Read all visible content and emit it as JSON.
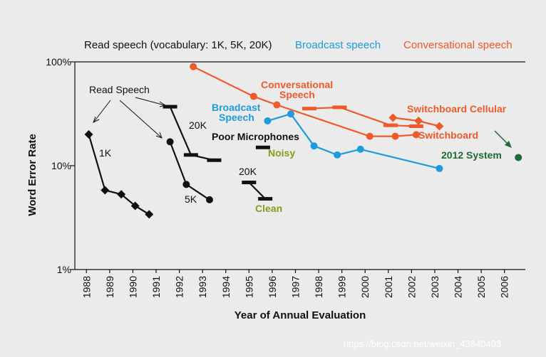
{
  "chart_data": {
    "type": "line",
    "title": "",
    "xlabel": "Year of Annual Evaluation",
    "ylabel": "Word Error Rate",
    "yscale": "log",
    "ylim": [
      1,
      100
    ],
    "xlim": [
      1987.5,
      2006.9
    ],
    "x_ticks": [
      "1988",
      "1989",
      "1990",
      "1991",
      "1992",
      "1993",
      "1994",
      "1995",
      "1996",
      "1997",
      "1998",
      "1999",
      "2000",
      "2001",
      "2002",
      "2003",
      "2004",
      "2005",
      "2006"
    ],
    "y_ticks": [
      {
        "value": 100,
        "label": "100%"
      },
      {
        "value": 10,
        "label": "10%"
      },
      {
        "value": 1,
        "label": "1%"
      }
    ],
    "legend": [
      {
        "label": "Read speech (vocabulary: 1K, 5K, 20K)",
        "color": "#111111"
      },
      {
        "label": "Broadcast speech",
        "color": "#1f9bdc"
      },
      {
        "label": "Conversational speech",
        "color": "#ef5a2b"
      }
    ],
    "series": [
      {
        "name": "Read 1K",
        "color": "#111111",
        "marker": "diamond",
        "points": [
          [
            1988.1,
            20
          ],
          [
            1988.8,
            5.8
          ],
          [
            1989.5,
            5.3
          ],
          [
            1990.1,
            4.1
          ],
          [
            1990.7,
            3.4
          ]
        ]
      },
      {
        "name": "Read 5K",
        "color": "#111111",
        "marker": "circle",
        "points": [
          [
            1991.6,
            17
          ],
          [
            1992.3,
            6.6
          ],
          [
            1993.3,
            4.7
          ]
        ]
      },
      {
        "name": "Read 20K",
        "color": "#111111",
        "marker": "bar",
        "points": [
          [
            1991.6,
            37
          ],
          [
            1992.5,
            12.7
          ],
          [
            1993.5,
            11.3
          ]
        ]
      },
      {
        "name": "Poor Microphones / Noisy",
        "color": "#111111",
        "marker": "bar",
        "points": [
          [
            1995.6,
            15
          ]
        ]
      },
      {
        "name": "20K Clean",
        "color": "#111111",
        "marker": "bar",
        "points": [
          [
            1995.0,
            6.9
          ],
          [
            1995.7,
            4.8
          ]
        ]
      },
      {
        "name": "Broadcast",
        "color": "#1f9bdc",
        "marker": "circle",
        "points": [
          [
            1995.8,
            27
          ],
          [
            1996.8,
            31.5
          ],
          [
            1997.8,
            15.5
          ],
          [
            1998.8,
            12.7
          ],
          [
            1999.8,
            14.4
          ],
          [
            2003.2,
            9.4
          ]
        ]
      },
      {
        "name": "Conversational",
        "color": "#ef5a2b",
        "marker": "circle",
        "points": [
          [
            1992.6,
            90
          ],
          [
            1995.2,
            46.5
          ],
          [
            1996.2,
            38.5
          ],
          [
            2000.2,
            19.2
          ],
          [
            2001.3,
            19.2
          ],
          [
            2002.2,
            19.9
          ]
        ]
      },
      {
        "name": "Switchboard bars",
        "color": "#ef5a2b",
        "marker": "bar",
        "points": [
          [
            1997.6,
            35.5
          ],
          [
            1998.9,
            36.5
          ],
          [
            2001.1,
            24.5
          ],
          [
            2002.2,
            24
          ]
        ]
      },
      {
        "name": "Switchboard Cellular",
        "color": "#ef5a2b",
        "marker": "diamond",
        "points": [
          [
            2001.2,
            29
          ],
          [
            2002.3,
            27
          ],
          [
            2003.2,
            24
          ]
        ]
      },
      {
        "name": "2012 System",
        "color": "#1e6b35",
        "marker": "circle",
        "connect": false,
        "points": [
          [
            2006.6,
            12
          ]
        ]
      }
    ],
    "annotations": [
      {
        "text": "Read Speech",
        "color": "#111111",
        "style": "normal"
      },
      {
        "text": "1K",
        "color": "#111111",
        "style": "normal"
      },
      {
        "text": "5K",
        "color": "#111111",
        "style": "normal"
      },
      {
        "text": "20K",
        "color": "#111111",
        "style": "normal"
      },
      {
        "text": "20K",
        "color": "#111111",
        "style": "normal"
      },
      {
        "text": "Poor Microphones",
        "color": "#111111",
        "style": "bold"
      },
      {
        "text": "Noisy",
        "color": "#8a9a1e",
        "style": "bold"
      },
      {
        "text": "Clean",
        "color": "#8a9a1e",
        "style": "bold"
      },
      {
        "text": "Broadcast",
        "color": "#1f9bdc",
        "style": "bold"
      },
      {
        "text": "Speech",
        "color": "#1f9bdc",
        "style": "bold"
      },
      {
        "text": "Conversational",
        "color": "#ef5a2b",
        "style": "bold"
      },
      {
        "text": "Speech",
        "color": "#ef5a2b",
        "style": "bold"
      },
      {
        "text": "Switchboard Cellular",
        "color": "#ef5a2b",
        "style": "bold"
      },
      {
        "text": "Switchboard",
        "color": "#ef5a2b",
        "style": "bold"
      },
      {
        "text": "2012 System",
        "color": "#1e6b35",
        "style": "bold"
      }
    ]
  },
  "watermark": "https://blog.csdn.net/weixin_43840403"
}
